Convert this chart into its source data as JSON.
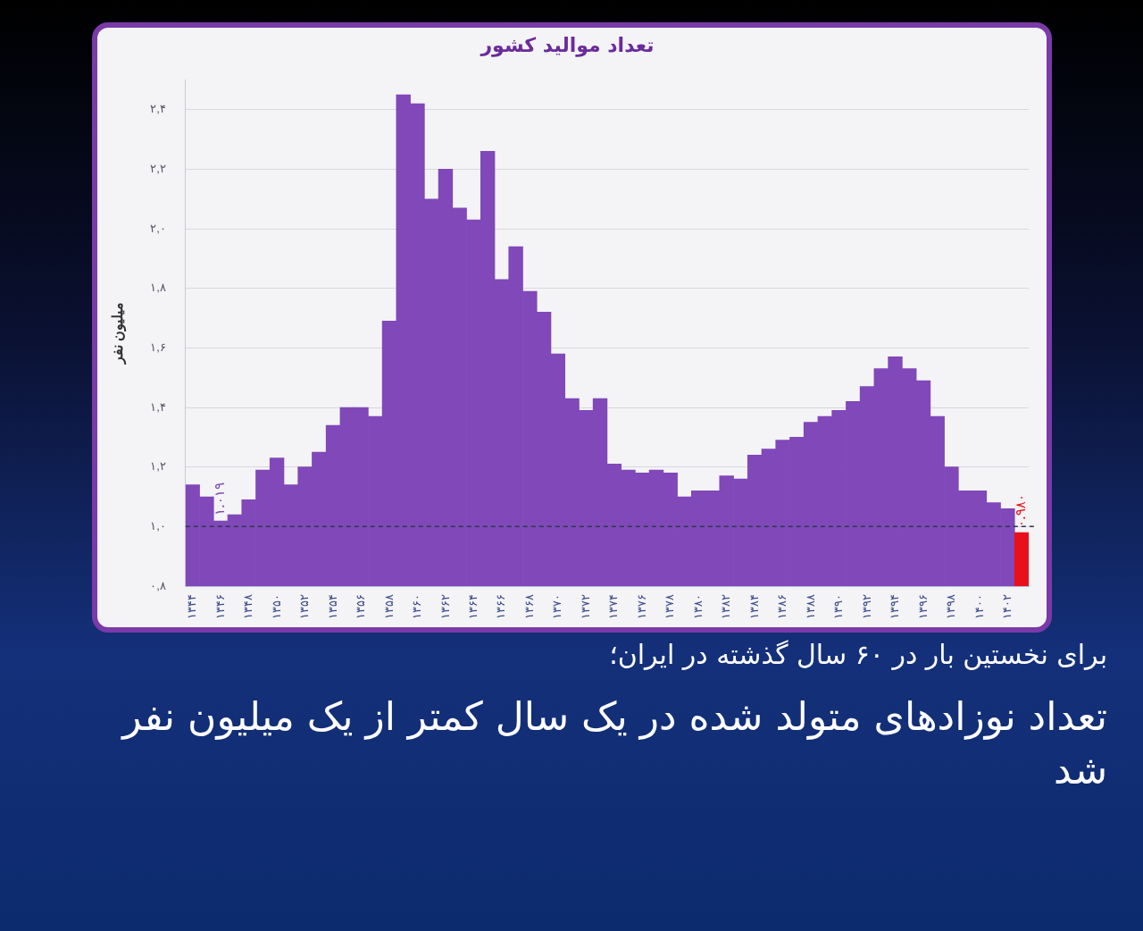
{
  "chart_data": {
    "type": "bar",
    "title": "تعداد موالید کشور",
    "ylabel": "میلیون نفر",
    "categories": [
      "۱۳۴۴",
      null,
      "۱۳۴۶",
      null,
      "۱۳۴۸",
      null,
      "۱۳۵۰",
      null,
      "۱۳۵۲",
      null,
      "۱۳۵۴",
      null,
      "۱۳۵۶",
      null,
      "۱۳۵۸",
      null,
      "۱۳۶۰",
      null,
      "۱۳۶۲",
      null,
      "۱۳۶۴",
      null,
      "۱۳۶۶",
      null,
      "۱۳۶۸",
      null,
      "۱۳۷۰",
      null,
      "۱۳۷۲",
      null,
      "۱۳۷۴",
      null,
      "۱۳۷۶",
      null,
      "۱۳۷۸",
      null,
      "۱۳۸۰",
      null,
      "۱۳۸۲",
      null,
      "۱۳۸۴",
      null,
      "۱۳۸۶",
      null,
      "۱۳۸۸",
      null,
      "۱۳۹۰",
      null,
      "۱۳۹۲",
      null,
      "۱۳۹۴",
      null,
      "۱۳۹۶",
      null,
      "۱۳۹۸",
      null,
      "۱۴۰۰",
      null,
      "۱۴۰۲",
      null
    ],
    "values": [
      1.14,
      1.1,
      1.019,
      1.04,
      1.09,
      1.19,
      1.23,
      1.14,
      1.2,
      1.25,
      1.34,
      1.4,
      1.4,
      1.37,
      1.69,
      2.45,
      2.42,
      2.1,
      2.2,
      2.07,
      2.03,
      2.26,
      1.83,
      1.94,
      1.79,
      1.72,
      1.58,
      1.43,
      1.39,
      1.43,
      1.21,
      1.19,
      1.18,
      1.19,
      1.18,
      1.1,
      1.12,
      1.12,
      1.17,
      1.16,
      1.24,
      1.26,
      1.29,
      1.3,
      1.35,
      1.37,
      1.39,
      1.42,
      1.47,
      1.53,
      1.57,
      1.53,
      1.49,
      1.37,
      1.2,
      1.12,
      1.12,
      1.08,
      1.06,
      0.98
    ],
    "colors": [
      "#8048b8",
      "#8048b8",
      "#8048b8",
      "#8048b8",
      "#8048b8",
      "#8048b8",
      "#8048b8",
      "#8048b8",
      "#8048b8",
      "#8048b8",
      "#8048b8",
      "#8048b8",
      "#8048b8",
      "#8048b8",
      "#8048b8",
      "#8048b8",
      "#8048b8",
      "#8048b8",
      "#8048b8",
      "#8048b8",
      "#8048b8",
      "#8048b8",
      "#8048b8",
      "#8048b8",
      "#8048b8",
      "#8048b8",
      "#8048b8",
      "#8048b8",
      "#8048b8",
      "#8048b8",
      "#8048b8",
      "#8048b8",
      "#8048b8",
      "#8048b8",
      "#8048b8",
      "#8048b8",
      "#8048b8",
      "#8048b8",
      "#8048b8",
      "#8048b8",
      "#8048b8",
      "#8048b8",
      "#8048b8",
      "#8048b8",
      "#8048b8",
      "#8048b8",
      "#8048b8",
      "#8048b8",
      "#8048b8",
      "#8048b8",
      "#8048b8",
      "#8048b8",
      "#8048b8",
      "#8048b8",
      "#8048b8",
      "#8048b8",
      "#8048b8",
      "#8048b8",
      "#8048b8",
      "#e8101a"
    ],
    "value_labels": [
      null,
      null,
      "۱.۰۱۹",
      null,
      null,
      null,
      null,
      null,
      null,
      null,
      null,
      null,
      null,
      null,
      null,
      null,
      null,
      null,
      null,
      null,
      null,
      null,
      null,
      null,
      null,
      null,
      null,
      null,
      null,
      null,
      null,
      null,
      null,
      null,
      null,
      null,
      null,
      null,
      null,
      null,
      null,
      null,
      null,
      null,
      null,
      null,
      null,
      null,
      null,
      null,
      null,
      null,
      null,
      null,
      null,
      null,
      null,
      null,
      null,
      "۰.۹۸۰"
    ],
    "ylim": [
      0.8,
      2.5
    ],
    "yticks": [
      {
        "value": 0.8,
        "label": "۰,۸"
      },
      {
        "value": 1.0,
        "label": "۱,۰"
      },
      {
        "value": 1.2,
        "label": "۱,۲"
      },
      {
        "value": 1.4,
        "label": "۱,۴"
      },
      {
        "value": 1.6,
        "label": "۱,۶"
      },
      {
        "value": 1.8,
        "label": "۱,۸"
      },
      {
        "value": 2.0,
        "label": "۲,۰"
      },
      {
        "value": 2.2,
        "label": "۲,۲"
      },
      {
        "value": 2.4,
        "label": "۲,۴"
      }
    ],
    "grid": "y",
    "legend": false,
    "ref_lines": [
      {
        "axis": "y",
        "value": 1.0,
        "color": "#333355",
        "line_style": "dashed"
      }
    ],
    "annotations": [
      "برای نخستین بار در ۶۰ سال گذشته در ایران؛",
      "تعداد نوزادهای متولد شده در یک سال کمتر از یک میلیون نفر شد"
    ]
  }
}
